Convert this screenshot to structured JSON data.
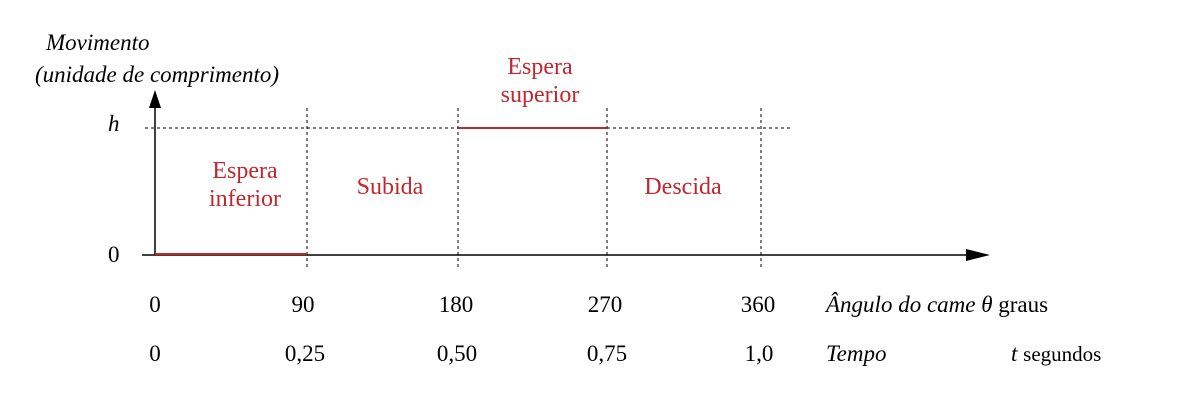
{
  "y_axis": {
    "title_line1": "Movimento",
    "title_line2": "(unidade de comprimento)",
    "tick_h": "h",
    "tick_0": "0"
  },
  "x_axis": {
    "angle_ticks": [
      "0",
      "90",
      "180",
      "270",
      "360"
    ],
    "angle_label_italic": "Ângulo do came θ",
    "angle_label_unit": "graus",
    "time_ticks": [
      "0",
      "0,25",
      "0,50",
      "0,75",
      "1,0"
    ],
    "time_label_italic": "Tempo",
    "time_symbol": "t",
    "time_unit": "segundos"
  },
  "segments": [
    {
      "line1": "Espera",
      "line2": "inferior"
    },
    {
      "line1": "Subida"
    },
    {
      "line1": "Espera",
      "line2": "superior"
    },
    {
      "line1": "Descida"
    }
  ],
  "colors": {
    "segment_red": "#c1272d",
    "axis": "#000000"
  }
}
